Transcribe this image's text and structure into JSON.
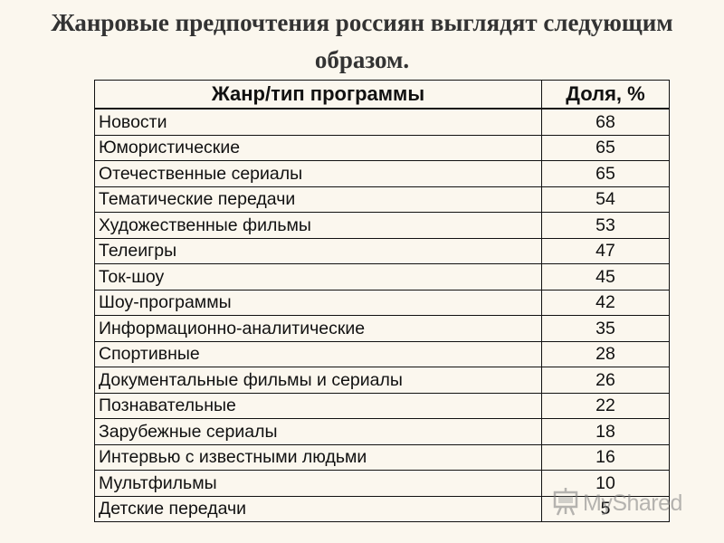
{
  "title": {
    "line1": "Жанровые предпочтения россиян выглядят следующим",
    "line2": "образом."
  },
  "table": {
    "headers": {
      "genre": "Жанр/тип программы",
      "share": "Доля, %"
    },
    "rows": [
      {
        "genre": "Новости",
        "share": "68"
      },
      {
        "genre": "Юмористические",
        "share": "65"
      },
      {
        "genre": "Отечественные сериалы",
        "share": "65"
      },
      {
        "genre": "Тематические передачи",
        "share": "54"
      },
      {
        "genre": "Художественные фильмы",
        "share": "53"
      },
      {
        "genre": "Телеигры",
        "share": "47"
      },
      {
        "genre": "Ток-шоу",
        "share": "45"
      },
      {
        "genre": "Шоу-программы",
        "share": "42"
      },
      {
        "genre": "Информационно-аналитические",
        "share": "35"
      },
      {
        "genre": "Спортивные",
        "share": "28"
      },
      {
        "genre": "Документальные фильмы и сериалы",
        "share": "26"
      },
      {
        "genre": "Познавательные",
        "share": "22"
      },
      {
        "genre": "Зарубежные сериалы",
        "share": "18"
      },
      {
        "genre": "Интервью с известными людьми",
        "share": "16"
      },
      {
        "genre": "Мультфильмы",
        "share": "10"
      },
      {
        "genre": "Детские передачи",
        "share": "5"
      }
    ]
  },
  "watermark": {
    "text": "MyShared",
    "icon": "presentation-board-icon"
  }
}
